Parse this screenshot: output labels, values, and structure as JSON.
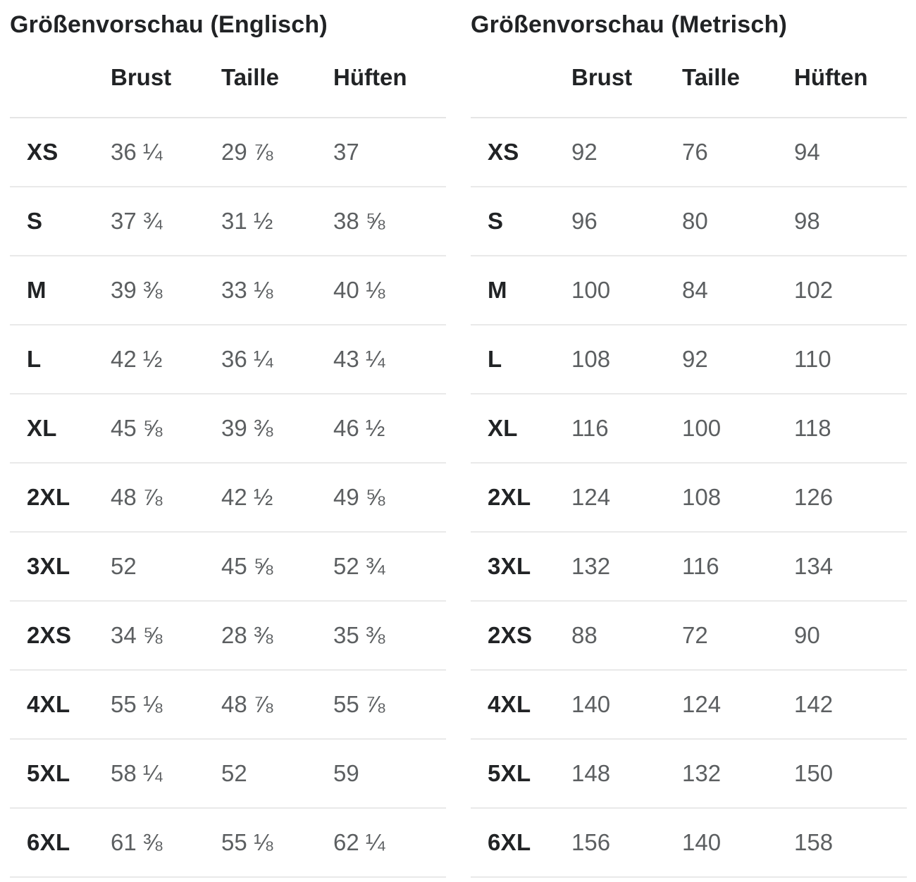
{
  "colors": {
    "heading_text": "#212325",
    "value_text": "#5c5f61",
    "divider": "#e9e9e9",
    "background": "#ffffff"
  },
  "tables": [
    {
      "title": "Größenvorschau (Englisch)",
      "columns": [
        "Brust",
        "Taille",
        "Hüften"
      ],
      "rows": [
        {
          "size": "XS",
          "values": [
            "36 ¼",
            "29 ⅞",
            "37"
          ]
        },
        {
          "size": "S",
          "values": [
            "37 ¾",
            "31 ½",
            "38 ⅝"
          ]
        },
        {
          "size": "M",
          "values": [
            "39 ⅜",
            "33 ⅛",
            "40 ⅛"
          ]
        },
        {
          "size": "L",
          "values": [
            "42 ½",
            "36 ¼",
            "43 ¼"
          ]
        },
        {
          "size": "XL",
          "values": [
            "45 ⅝",
            "39 ⅜",
            "46 ½"
          ]
        },
        {
          "size": "2XL",
          "values": [
            "48 ⅞",
            "42 ½",
            "49 ⅝"
          ]
        },
        {
          "size": "3XL",
          "values": [
            "52",
            "45 ⅝",
            "52 ¾"
          ]
        },
        {
          "size": "2XS",
          "values": [
            "34 ⅝",
            "28 ⅜",
            "35 ⅜"
          ]
        },
        {
          "size": "4XL",
          "values": [
            "55 ⅛",
            "48 ⅞",
            "55 ⅞"
          ]
        },
        {
          "size": "5XL",
          "values": [
            "58 ¼",
            "52",
            "59"
          ]
        },
        {
          "size": "6XL",
          "values": [
            "61 ⅜",
            "55 ⅛",
            "62 ¼"
          ]
        }
      ]
    },
    {
      "title": "Größenvorschau (Metrisch)",
      "columns": [
        "Brust",
        "Taille",
        "Hüften"
      ],
      "rows": [
        {
          "size": "XS",
          "values": [
            "92",
            "76",
            "94"
          ]
        },
        {
          "size": "S",
          "values": [
            "96",
            "80",
            "98"
          ]
        },
        {
          "size": "M",
          "values": [
            "100",
            "84",
            "102"
          ]
        },
        {
          "size": "L",
          "values": [
            "108",
            "92",
            "110"
          ]
        },
        {
          "size": "XL",
          "values": [
            "116",
            "100",
            "118"
          ]
        },
        {
          "size": "2XL",
          "values": [
            "124",
            "108",
            "126"
          ]
        },
        {
          "size": "3XL",
          "values": [
            "132",
            "116",
            "134"
          ]
        },
        {
          "size": "2XS",
          "values": [
            "88",
            "72",
            "90"
          ]
        },
        {
          "size": "4XL",
          "values": [
            "140",
            "124",
            "142"
          ]
        },
        {
          "size": "5XL",
          "values": [
            "148",
            "132",
            "150"
          ]
        },
        {
          "size": "6XL",
          "values": [
            "156",
            "140",
            "158"
          ]
        }
      ]
    }
  ]
}
